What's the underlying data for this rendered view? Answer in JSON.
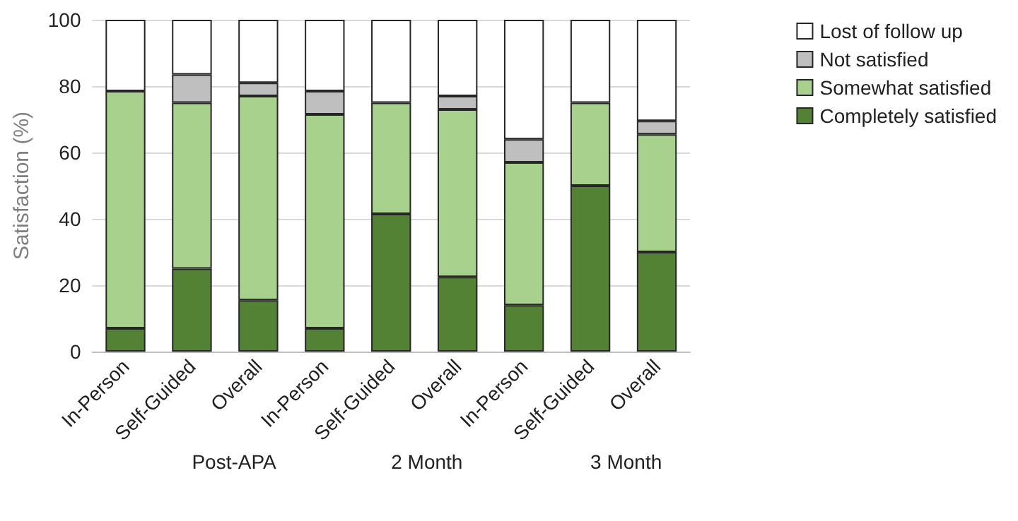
{
  "chart_data": {
    "type": "bar",
    "stacked": true,
    "ylabel": "Satisfaction (%)",
    "categories": [
      "In-Person",
      "Self-Guided",
      "Overall",
      "In-Person",
      "Self-Guided",
      "Overall",
      "In-Person",
      "Self-Guided",
      "Overall"
    ],
    "series": [
      {
        "name": "Completely satisfied",
        "color": "#548235",
        "values": [
          7,
          25,
          15.5,
          7,
          41.5,
          22.5,
          14,
          50,
          30
        ]
      },
      {
        "name": "Somewhat satisfied",
        "color": "#a9d18e",
        "values": [
          71.5,
          50,
          61.5,
          64.5,
          33.5,
          50.5,
          43,
          25,
          35.5
        ]
      },
      {
        "name": "Not satisfied",
        "color": "#bfbfbf",
        "values": [
          0,
          8.5,
          4,
          7,
          0,
          4,
          7,
          0,
          4
        ]
      },
      {
        "name": "Lost of follow up",
        "color": "#ffffff",
        "values": [
          21.5,
          16.5,
          19,
          21.5,
          25,
          23,
          36,
          25,
          30.5
        ]
      }
    ],
    "annotations": [
      "Post-APA",
      "2 Month",
      "3 Month"
    ],
    "ylim": [
      0,
      100
    ],
    "yticks": [
      0,
      20,
      40,
      60,
      80,
      100
    ],
    "grid": "y",
    "legend": "top right"
  }
}
